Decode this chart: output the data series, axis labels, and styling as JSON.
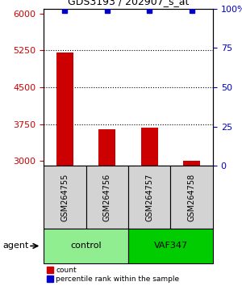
{
  "title": "GDS3193 / 202907_s_at",
  "samples": [
    "GSM264755",
    "GSM264756",
    "GSM264757",
    "GSM264758"
  ],
  "counts": [
    5200,
    3650,
    3680,
    3010
  ],
  "percentile_ranks": [
    99,
    99,
    99,
    99
  ],
  "groups": [
    "control",
    "control",
    "VAF347",
    "VAF347"
  ],
  "group_labels": [
    "control",
    "VAF347"
  ],
  "group_colors": [
    "#90EE90",
    "#00CC00"
  ],
  "bar_color": "#CC0000",
  "dot_color": "#0000CC",
  "ylim_left": [
    2900,
    6100
  ],
  "ylim_right": [
    0,
    100
  ],
  "yticks_left": [
    3000,
    3750,
    4500,
    5250,
    6000
  ],
  "yticks_right": [
    0,
    25,
    50,
    75,
    100
  ],
  "ytick_labels_right": [
    "0",
    "25",
    "50",
    "75",
    "100%"
  ],
  "left_tick_color": "#CC0000",
  "right_tick_color": "#0000CC",
  "legend_count_label": "count",
  "legend_pct_label": "percentile rank within the sample",
  "agent_label": "agent",
  "background_color": "#ffffff",
  "sample_area_color": "#d3d3d3",
  "fig_width": 3.0,
  "fig_height": 3.54,
  "dpi": 100
}
